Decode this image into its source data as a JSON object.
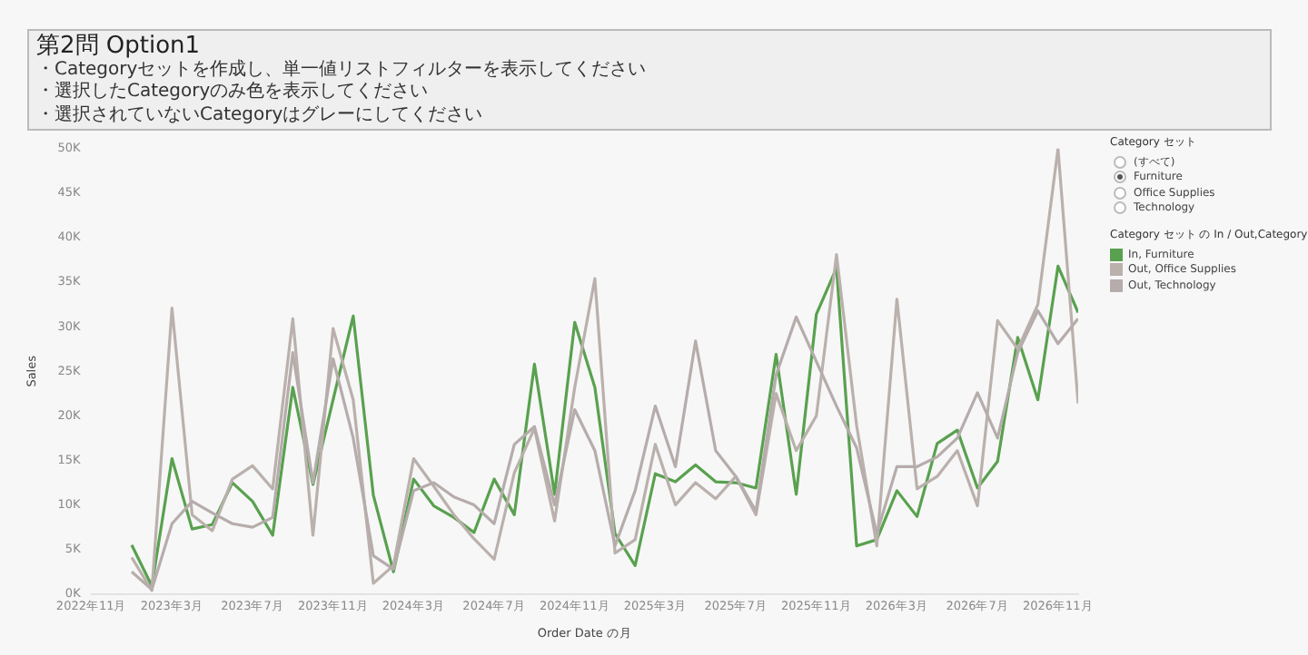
{
  "chart_data": {
    "type": "line",
    "title": "第2問 Option1",
    "xlabel": "Order Date の月",
    "ylabel": "Sales",
    "legend_title": "Category セット の In / Out,Category",
    "annotations": [
      "・Categoryセットを作成し、単一値リストフィルターを表示してください",
      "・選択したCategoryのみ色を表示してください",
      "・選択されていないCategoryはグレーにしてください",
      "Category セット",
      "(すべて)",
      "Furniture",
      "Office Supplies",
      "Technology"
    ],
    "x": [
      "2023-01",
      "2023-02",
      "2023-03",
      "2023-04",
      "2023-05",
      "2023-06",
      "2023-07",
      "2023-08",
      "2023-09",
      "2023-10",
      "2023-11",
      "2023-12",
      "2024-01",
      "2024-02",
      "2024-03",
      "2024-04",
      "2024-05",
      "2024-06",
      "2024-07",
      "2024-08",
      "2024-09",
      "2024-10",
      "2024-11",
      "2024-12",
      "2025-01",
      "2025-02",
      "2025-03",
      "2025-04",
      "2025-05",
      "2025-06",
      "2025-07",
      "2025-08",
      "2025-09",
      "2025-10",
      "2025-11",
      "2025-12",
      "2026-01",
      "2026-02",
      "2026-03",
      "2026-04",
      "2026-05",
      "2026-06",
      "2026-07",
      "2026-08",
      "2026-09",
      "2026-10",
      "2026-11",
      "2026-12"
    ],
    "series": [
      {
        "name": "In, Furniture",
        "color": "#59a14f",
        "values": [
          5.5,
          0.9,
          15.2,
          7.3,
          7.8,
          12.5,
          10.4,
          6.6,
          23.2,
          12.3,
          21.8,
          31.2,
          11.1,
          2.5,
          12.9,
          9.9,
          8.6,
          6.9,
          12.9,
          8.9,
          25.8,
          11.2,
          30.5,
          23.2,
          6.8,
          3.2,
          13.5,
          12.6,
          14.5,
          12.6,
          12.5,
          11.9,
          26.9,
          11.2,
          31.4,
          36.6,
          5.4,
          6.1,
          11.6,
          8.7,
          16.9,
          18.4,
          11.9,
          14.9,
          28.8,
          21.8,
          36.8,
          31.6
        ]
      },
      {
        "name": "Out, Office Supplies",
        "color": "#bab0ac",
        "values": [
          4.1,
          0.4,
          32.1,
          8.9,
          7.1,
          12.9,
          14.4,
          11.8,
          30.9,
          6.6,
          29.8,
          21.8,
          1.2,
          3.2,
          15.2,
          12.1,
          8.9,
          6.2,
          3.9,
          13.6,
          18.6,
          8.2,
          23.2,
          35.4,
          4.6,
          6.1,
          16.8,
          10.0,
          12.5,
          10.7,
          13.2,
          8.9,
          22.5,
          16.1,
          20.0,
          38.1,
          18.9,
          5.4,
          33.1,
          11.8,
          13.2,
          16.1,
          9.9,
          30.7,
          27.5,
          32.5,
          50.0,
          21.4
        ]
      },
      {
        "name": "Out, Technology",
        "color": "#b5acab",
        "values": [
          2.5,
          0.5,
          7.9,
          10.4,
          9.1,
          7.9,
          7.5,
          8.6,
          27.1,
          12.5,
          26.4,
          17.5,
          4.3,
          2.8,
          11.6,
          12.5,
          10.9,
          10.0,
          7.9,
          16.8,
          18.8,
          10.0,
          20.7,
          16.1,
          5.4,
          11.6,
          21.1,
          14.3,
          28.4,
          16.1,
          13.2,
          9.3,
          24.6,
          31.1,
          26.1,
          21.1,
          16.4,
          6.8,
          14.3,
          14.3,
          15.4,
          17.5,
          22.6,
          17.5,
          27.1,
          31.8,
          28.1,
          30.9
        ]
      }
    ],
    "xlim": [
      "2022-11",
      "2026-12"
    ],
    "xticks": [
      {
        "value": "2022-11",
        "label": "2022年11月"
      },
      {
        "value": "2023-03",
        "label": "2023年3月"
      },
      {
        "value": "2023-07",
        "label": "2023年7月"
      },
      {
        "value": "2023-11",
        "label": "2023年11月"
      },
      {
        "value": "2024-03",
        "label": "2024年3月"
      },
      {
        "value": "2024-07",
        "label": "2024年7月"
      },
      {
        "value": "2024-11",
        "label": "2024年11月"
      },
      {
        "value": "2025-03",
        "label": "2025年3月"
      },
      {
        "value": "2025-07",
        "label": "2025年7月"
      },
      {
        "value": "2025-11",
        "label": "2025年11月"
      },
      {
        "value": "2026-03",
        "label": "2026年3月"
      },
      {
        "value": "2026-07",
        "label": "2026年7月"
      },
      {
        "value": "2026-11",
        "label": "2026年11月"
      }
    ],
    "ylim": [
      0,
      50
    ],
    "yticks": [
      {
        "value": 0,
        "label": "0K"
      },
      {
        "value": 5,
        "label": "5K"
      },
      {
        "value": 10,
        "label": "10K"
      },
      {
        "value": 15,
        "label": "15K"
      },
      {
        "value": 20,
        "label": "20K"
      },
      {
        "value": 25,
        "label": "25K"
      },
      {
        "value": 30,
        "label": "30K"
      },
      {
        "value": 35,
        "label": "35K"
      },
      {
        "value": 40,
        "label": "40K"
      },
      {
        "value": 45,
        "label": "45K"
      },
      {
        "value": 50,
        "label": "50K"
      }
    ],
    "grid": false,
    "legend": "right",
    "marker": "none",
    "line_style": "solid"
  }
}
